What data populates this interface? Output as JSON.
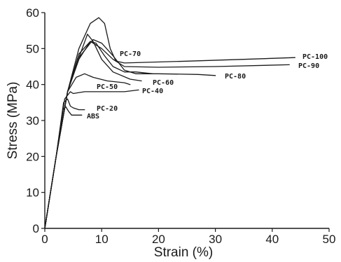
{
  "chart_data": {
    "type": "line",
    "title": "",
    "xlabel": "Strain (%)",
    "ylabel": "Stress (MPa)",
    "xlim": [
      0,
      50
    ],
    "ylim": [
      0,
      60
    ],
    "x_ticks": [
      0,
      10,
      20,
      30,
      40,
      50
    ],
    "y_ticks": [
      0,
      10,
      20,
      30,
      40,
      50,
      60
    ],
    "grid": false,
    "legend": "none",
    "series": [
      {
        "name": "PC-100",
        "points": [
          [
            0,
            0
          ],
          [
            2,
            20
          ],
          [
            4,
            38
          ],
          [
            6,
            50
          ],
          [
            8,
            57
          ],
          [
            9.5,
            58.6
          ],
          [
            10.5,
            57
          ],
          [
            11.5,
            50
          ],
          [
            12.5,
            46.5
          ],
          [
            14,
            46
          ],
          [
            25,
            46.5
          ],
          [
            35,
            47
          ],
          [
            44,
            47.5
          ]
        ]
      },
      {
        "name": "PC-90",
        "points": [
          [
            0,
            0
          ],
          [
            2,
            20
          ],
          [
            4,
            38
          ],
          [
            6,
            48.5
          ],
          [
            8,
            52
          ],
          [
            10,
            50
          ],
          [
            12,
            47
          ],
          [
            14,
            45
          ],
          [
            20,
            44.8
          ],
          [
            30,
            45
          ],
          [
            43,
            45.5
          ]
        ]
      },
      {
        "name": "PC-80",
        "points": [
          [
            0,
            0
          ],
          [
            2,
            20
          ],
          [
            4,
            38
          ],
          [
            6,
            47.5
          ],
          [
            8.5,
            52.5
          ],
          [
            10,
            51.5
          ],
          [
            12,
            48
          ],
          [
            14,
            44
          ],
          [
            16,
            43
          ],
          [
            20,
            43
          ],
          [
            27,
            42.8
          ],
          [
            30,
            42.5
          ]
        ]
      },
      {
        "name": "PC-70",
        "points": [
          [
            0,
            0
          ],
          [
            2,
            20
          ],
          [
            4,
            38
          ],
          [
            6,
            47
          ],
          [
            8,
            52
          ],
          [
            9,
            51.5
          ],
          [
            10.5,
            48
          ],
          [
            12,
            45
          ],
          [
            14,
            43.5
          ],
          [
            16,
            43.5
          ],
          [
            19,
            43
          ]
        ]
      },
      {
        "name": "PC-60",
        "points": [
          [
            0,
            0
          ],
          [
            2,
            20
          ],
          [
            4,
            38
          ],
          [
            6,
            47.5
          ],
          [
            7.5,
            54
          ],
          [
            8.5,
            52
          ],
          [
            10,
            47
          ],
          [
            12,
            43.5
          ],
          [
            15,
            41.5
          ],
          [
            17,
            41
          ]
        ]
      },
      {
        "name": "PC-50",
        "points": [
          [
            0,
            0
          ],
          [
            2,
            20
          ],
          [
            4,
            38
          ],
          [
            5.5,
            42
          ],
          [
            7,
            43
          ],
          [
            8.5,
            42
          ],
          [
            11,
            41
          ],
          [
            14,
            40.5
          ],
          [
            15,
            40
          ]
        ]
      },
      {
        "name": "PC-40",
        "points": [
          [
            0,
            0
          ],
          [
            2,
            20
          ],
          [
            3.5,
            36
          ],
          [
            4.5,
            38
          ],
          [
            5,
            37.5
          ],
          [
            7,
            38
          ],
          [
            10,
            38
          ],
          [
            14,
            38
          ],
          [
            16.5,
            38.5
          ]
        ]
      },
      {
        "name": "PC-20",
        "points": [
          [
            0,
            0
          ],
          [
            2,
            20
          ],
          [
            3.3,
            35
          ],
          [
            4,
            36
          ],
          [
            4.5,
            34
          ],
          [
            5,
            33.5
          ],
          [
            6,
            33
          ],
          [
            7,
            33
          ]
        ]
      },
      {
        "name": "ABS",
        "points": [
          [
            0,
            0
          ],
          [
            2,
            20
          ],
          [
            3.2,
            33
          ],
          [
            3.7,
            33.8
          ],
          [
            4.2,
            32.5
          ],
          [
            4.7,
            31.5
          ],
          [
            5.5,
            31.5
          ],
          [
            6.5,
            31.5
          ]
        ]
      }
    ]
  }
}
